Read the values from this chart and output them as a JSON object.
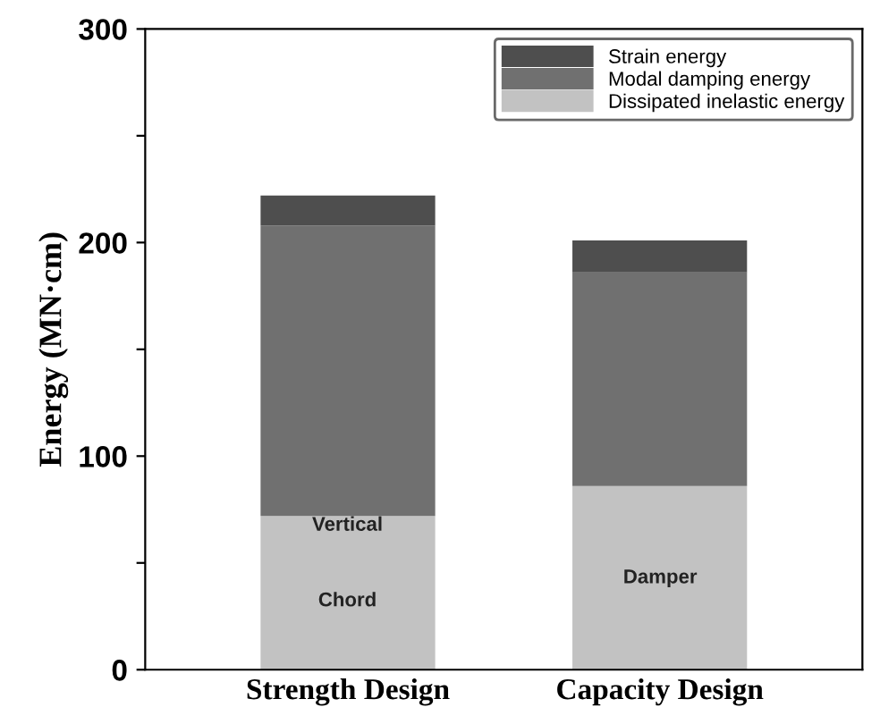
{
  "chart_data": {
    "type": "bar",
    "stacked": true,
    "ylabel": "Energy (MN·cm)",
    "categories": [
      "Strength Design",
      "Capacity Design"
    ],
    "series": [
      {
        "name": "Dissipated inelastic energy",
        "color": "#c2c2c2",
        "values": [
          72,
          86
        ]
      },
      {
        "name": "Modal damping energy",
        "color": "#707070",
        "values": [
          136,
          100
        ]
      },
      {
        "name": "Strain energy",
        "color": "#4e4e4e",
        "values": [
          14,
          15
        ]
      }
    ],
    "ylim": [
      0,
      300
    ],
    "yticks": [
      0,
      {
        "value": 50,
        "label": null
      },
      100,
      {
        "value": 150,
        "label": null
      },
      200,
      {
        "value": 250,
        "label": null
      },
      300
    ],
    "annotations": [
      "Vertical",
      "Chord",
      "Damper"
    ],
    "legend": "top right",
    "grid": false
  }
}
